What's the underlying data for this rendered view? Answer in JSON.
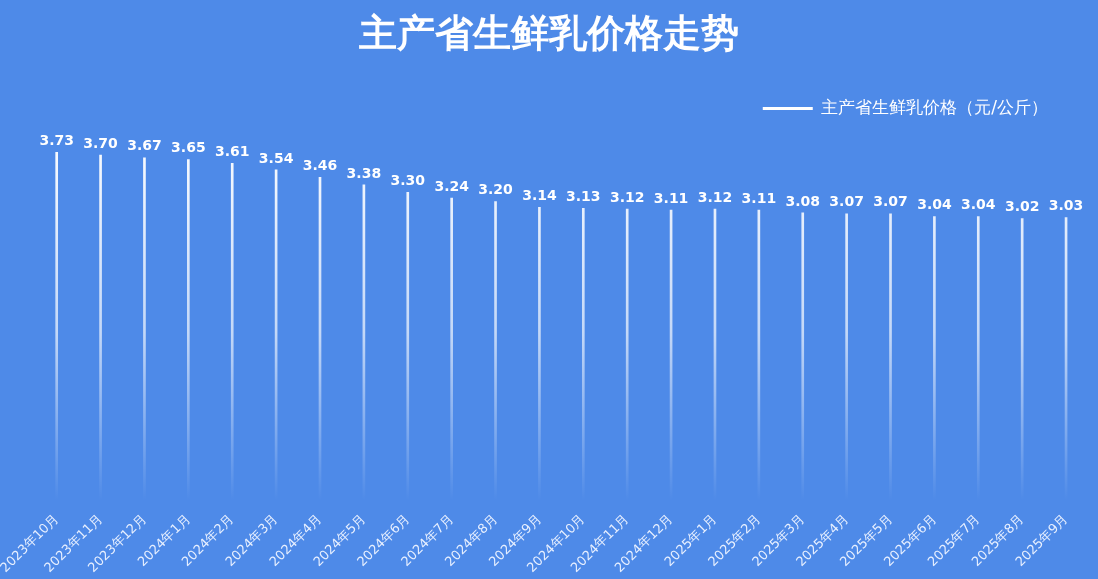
{
  "chart_data": {
    "type": "bar",
    "title": "主产省生鲜乳价格走势",
    "categories": [
      "2023年10月",
      "2023年11月",
      "2023年12月",
      "2024年1月",
      "2024年2月",
      "2024年3月",
      "2024年4月",
      "2024年5月",
      "2024年6月",
      "2024年7月",
      "2024年8月",
      "2024年9月",
      "2024年10月",
      "2024年11月",
      "2024年12月",
      "2025年1月",
      "2025年2月",
      "2025年3月",
      "2025年4月",
      "2025年5月",
      "2025年6月",
      "2025年7月",
      "2025年8月",
      "2025年9月"
    ],
    "series": [
      {
        "name": "主产省生鲜乳价格（元/公斤）",
        "color": "#ffffff",
        "values": [
          3.73,
          3.7,
          3.67,
          3.65,
          3.61,
          3.54,
          3.46,
          3.38,
          3.3,
          3.24,
          3.2,
          3.14,
          3.13,
          3.12,
          3.11,
          3.12,
          3.11,
          3.08,
          3.07,
          3.07,
          3.04,
          3.04,
          3.02,
          3.03
        ],
        "value_labels": [
          "3.73",
          "3.70",
          "3.67",
          "3.65",
          "3.61",
          "3.54",
          "3.46",
          "3.38",
          "3.30",
          "3.24",
          "3.20",
          "3.14",
          "3.13",
          "3.12",
          "3.11",
          "3.12",
          "3.11",
          "3.08",
          "3.07",
          "3.07",
          "3.04",
          "3.04",
          "3.02",
          "3.03"
        ]
      }
    ],
    "grid": false,
    "legend": "top right"
  }
}
